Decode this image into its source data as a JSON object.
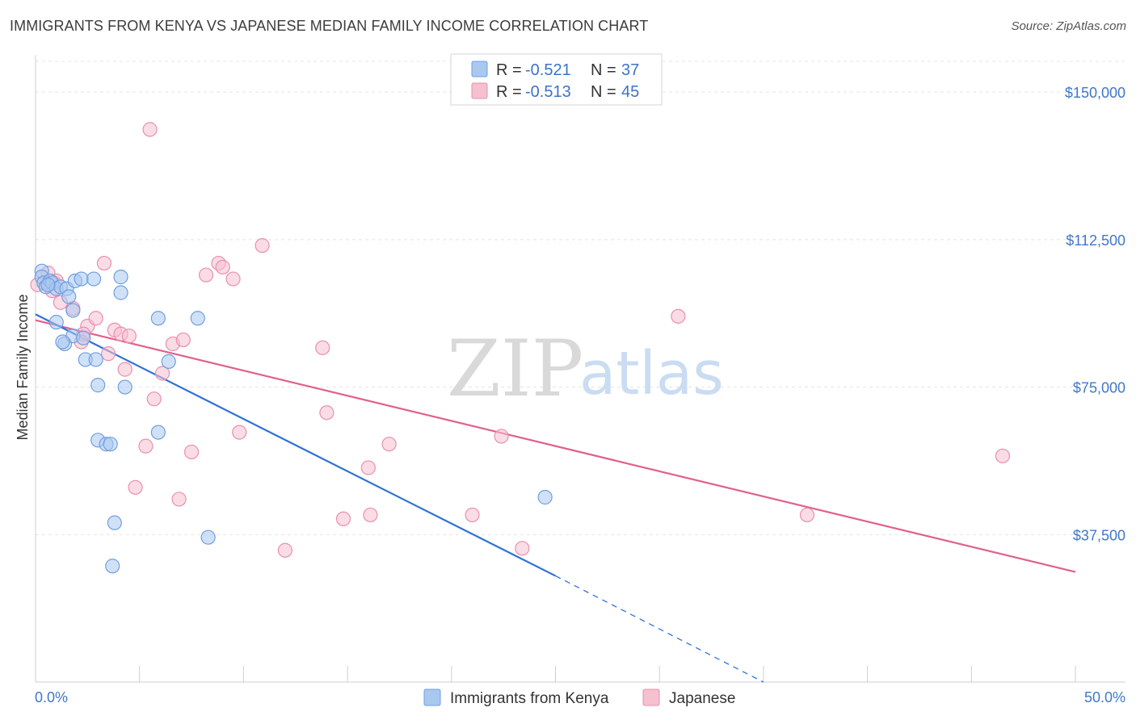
{
  "header": {
    "title": "IMMIGRANTS FROM KENYA VS JAPANESE MEDIAN FAMILY INCOME CORRELATION CHART",
    "source": "Source: ZipAtlas.com"
  },
  "watermark": {
    "zip": "ZIP",
    "atlas": "atlas"
  },
  "colors": {
    "kenya_fill": "#a9c8f0",
    "kenya_stroke": "#6f9fe0",
    "kenya_line": "#2f72d6",
    "japanese_fill": "#f5c0d0",
    "japanese_stroke": "#ea8fae",
    "japanese_line": "#e0608c",
    "grid": "#e4e4e4",
    "axis_label": "#3f78c9"
  },
  "chart_data": {
    "type": "scatter",
    "title": "IMMIGRANTS FROM KENYA VS JAPANESE MEDIAN FAMILY INCOME CORRELATION CHART",
    "xlabel": "",
    "ylabel": "Median Family Income",
    "xlim": [
      0,
      50
    ],
    "ylim": [
      0,
      157000
    ],
    "x_tick_labels": [
      "0.0%",
      "50.0%"
    ],
    "y_ticks": [
      37500,
      75000,
      112500,
      150000
    ],
    "y_tick_labels": [
      "$37,500",
      "$75,000",
      "$112,500",
      "$150,000"
    ],
    "grid": true,
    "legend": [
      {
        "label": "Immigrants from Kenya",
        "r_label": "R =",
        "r": "-0.521",
        "n_label": "N =",
        "n": "37"
      },
      {
        "label": "Japanese",
        "r_label": "R =",
        "r": "-0.513",
        "n_label": "N =",
        "n": "45"
      }
    ],
    "series": [
      {
        "name": "Immigrants from Kenya",
        "points": [
          [
            0.3,
            104500
          ],
          [
            0.3,
            103000
          ],
          [
            0.4,
            101500
          ],
          [
            0.5,
            100500
          ],
          [
            0.7,
            102000
          ],
          [
            0.8,
            101500
          ],
          [
            1.0,
            100000
          ],
          [
            1.2,
            100500
          ],
          [
            1.5,
            100000
          ],
          [
            1.6,
            98000
          ],
          [
            1.8,
            94500
          ],
          [
            1.9,
            102000
          ],
          [
            2.2,
            102500
          ],
          [
            1.0,
            91500
          ],
          [
            1.4,
            86000
          ],
          [
            1.8,
            88000
          ],
          [
            2.8,
            102500
          ],
          [
            4.1,
            103000
          ],
          [
            4.1,
            99000
          ],
          [
            2.4,
            82000
          ],
          [
            2.9,
            82000
          ],
          [
            3.0,
            75500
          ],
          [
            4.3,
            75000
          ],
          [
            5.9,
            92500
          ],
          [
            7.8,
            92500
          ],
          [
            6.4,
            81500
          ],
          [
            5.9,
            63500
          ],
          [
            3.0,
            61500
          ],
          [
            3.4,
            60500
          ],
          [
            3.6,
            60500
          ],
          [
            3.8,
            40500
          ],
          [
            8.3,
            36800
          ],
          [
            3.7,
            29500
          ],
          [
            24.5,
            47000
          ],
          [
            2.3,
            87500
          ],
          [
            1.3,
            86500
          ],
          [
            0.6,
            101000
          ]
        ],
        "trend": {
          "x_start": 0,
          "y_start": 93500,
          "x_end": 25.0,
          "y_end": 27000,
          "dash_x_end": 35.0,
          "dash_y_end": 0
        }
      },
      {
        "name": "Japanese",
        "points": [
          [
            0.1,
            101000
          ],
          [
            0.6,
            104000
          ],
          [
            0.9,
            101500
          ],
          [
            0.8,
            99500
          ],
          [
            1.0,
            102000
          ],
          [
            1.2,
            96500
          ],
          [
            1.8,
            95000
          ],
          [
            2.5,
            90500
          ],
          [
            2.9,
            92500
          ],
          [
            2.3,
            88500
          ],
          [
            3.3,
            106500
          ],
          [
            3.8,
            89500
          ],
          [
            4.1,
            88500
          ],
          [
            4.5,
            88000
          ],
          [
            3.5,
            83500
          ],
          [
            4.3,
            79500
          ],
          [
            5.5,
            140500
          ],
          [
            5.7,
            72000
          ],
          [
            6.1,
            78500
          ],
          [
            6.6,
            86000
          ],
          [
            7.1,
            87000
          ],
          [
            8.2,
            103500
          ],
          [
            8.8,
            106500
          ],
          [
            9.0,
            105500
          ],
          [
            9.5,
            102500
          ],
          [
            10.9,
            111000
          ],
          [
            7.5,
            58500
          ],
          [
            6.9,
            46500
          ],
          [
            4.8,
            49500
          ],
          [
            5.3,
            60000
          ],
          [
            9.8,
            63500
          ],
          [
            13.8,
            85000
          ],
          [
            14.0,
            68500
          ],
          [
            14.8,
            41500
          ],
          [
            16.1,
            42500
          ],
          [
            16.0,
            54500
          ],
          [
            17.0,
            60500
          ],
          [
            12.0,
            33500
          ],
          [
            21.0,
            42500
          ],
          [
            22.4,
            62500
          ],
          [
            23.4,
            34000
          ],
          [
            30.9,
            93000
          ],
          [
            37.1,
            42500
          ],
          [
            46.5,
            57500
          ],
          [
            2.2,
            86500
          ]
        ],
        "trend": {
          "x_start": 0,
          "y_start": 92000,
          "x_end": 50,
          "y_end": 28000
        }
      }
    ]
  }
}
